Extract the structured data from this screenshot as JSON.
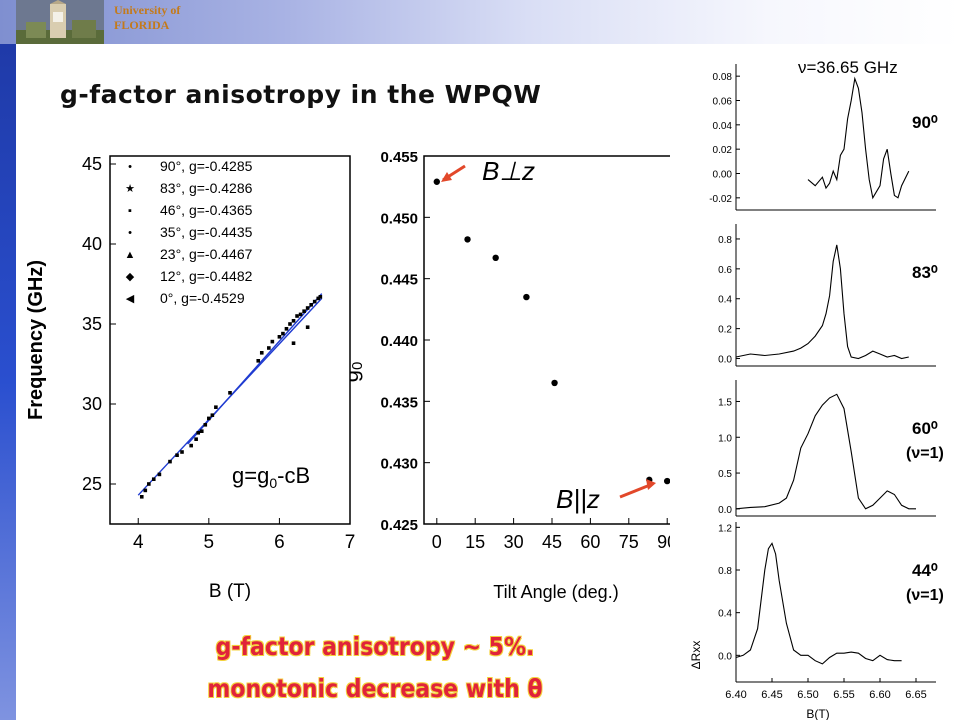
{
  "header": {
    "university_line1": "University of",
    "university_line2": "FLORIDA"
  },
  "title": "g-factor anisotropy in the WPQW",
  "caption": {
    "line1": "g-factor anisotropy ~ 5%.",
    "line2": "monotonic decrease with θ"
  },
  "colors": {
    "accent_red": "#e0233a",
    "fit_line": "#1f3bd1",
    "arrow": "#e2482a",
    "header_gold": "#c47a1a"
  },
  "chart_data": [
    {
      "type": "scatter",
      "xlabel": "B (T)",
      "ylabel": "Frequency (GHz)",
      "xlim": [
        3.6,
        7.0
      ],
      "ylim": [
        22.5,
        45.5
      ],
      "xticks": [
        "4",
        "5",
        "6",
        "7"
      ],
      "yticks": [
        "25",
        "30",
        "35",
        "40",
        "45"
      ],
      "annotation": "g=g0-cB",
      "legend": [
        {
          "marker": "•",
          "label": "90°, g=-0.4285"
        },
        {
          "marker": "★",
          "label": "83°, g=-0.4286"
        },
        {
          "marker": "▪",
          "label": "46°, g=-0.4365"
        },
        {
          "marker": "•",
          "label": "35°, g=-0.4435"
        },
        {
          "marker": "▲",
          "label": "23°, g=-0.4467"
        },
        {
          "marker": "◆",
          "label": "12°, g=-0.4482"
        },
        {
          "marker": "◀",
          "label": "0°,   g=-0.4529"
        }
      ],
      "fit_lines": [
        {
          "x": [
            4.0,
            6.6
          ],
          "y": [
            24.3,
            36.6
          ]
        },
        {
          "x": [
            4.7,
            6.6
          ],
          "y": [
            27.5,
            36.9
          ]
        }
      ],
      "points": [
        {
          "x": 4.05,
          "y": 24.2
        },
        {
          "x": 4.1,
          "y": 24.6
        },
        {
          "x": 4.15,
          "y": 25.0
        },
        {
          "x": 4.22,
          "y": 25.3
        },
        {
          "x": 4.3,
          "y": 25.6
        },
        {
          "x": 4.45,
          "y": 26.4
        },
        {
          "x": 4.55,
          "y": 26.8
        },
        {
          "x": 4.62,
          "y": 27.0
        },
        {
          "x": 4.75,
          "y": 27.4
        },
        {
          "x": 4.82,
          "y": 27.8
        },
        {
          "x": 4.85,
          "y": 28.2
        },
        {
          "x": 4.9,
          "y": 28.3
        },
        {
          "x": 4.95,
          "y": 28.7
        },
        {
          "x": 5.0,
          "y": 29.1
        },
        {
          "x": 5.05,
          "y": 29.3
        },
        {
          "x": 5.1,
          "y": 29.8
        },
        {
          "x": 5.3,
          "y": 30.7
        },
        {
          "x": 5.7,
          "y": 32.7
        },
        {
          "x": 5.75,
          "y": 33.2
        },
        {
          "x": 5.85,
          "y": 33.5
        },
        {
          "x": 5.9,
          "y": 33.9
        },
        {
          "x": 6.0,
          "y": 34.2
        },
        {
          "x": 6.05,
          "y": 34.4
        },
        {
          "x": 6.1,
          "y": 34.7
        },
        {
          "x": 6.15,
          "y": 35.0
        },
        {
          "x": 6.2,
          "y": 35.2
        },
        {
          "x": 6.25,
          "y": 35.5
        },
        {
          "x": 6.3,
          "y": 35.6
        },
        {
          "x": 6.35,
          "y": 35.8
        },
        {
          "x": 6.4,
          "y": 36.0
        },
        {
          "x": 6.45,
          "y": 36.2
        },
        {
          "x": 6.5,
          "y": 36.4
        },
        {
          "x": 6.55,
          "y": 36.6
        },
        {
          "x": 6.58,
          "y": 36.7
        },
        {
          "x": 6.2,
          "y": 33.8
        },
        {
          "x": 6.4,
          "y": 34.8
        }
      ]
    },
    {
      "type": "scatter",
      "xlabel": "Tilt Angle (deg.)",
      "ylabel": "g0",
      "xlim": [
        -5,
        95
      ],
      "ylim": [
        0.425,
        0.455
      ],
      "xticks": [
        "0",
        "15",
        "30",
        "45",
        "60",
        "75",
        "90"
      ],
      "yticks": [
        "0.425",
        "0.430",
        "0.435",
        "0.440",
        "0.445",
        "0.450",
        "0.455"
      ],
      "annotations": [
        "B⊥z",
        "B||z"
      ],
      "x": [
        0,
        12,
        23,
        35,
        46,
        83,
        90
      ],
      "y": [
        0.4529,
        0.4482,
        0.4467,
        0.4435,
        0.4365,
        0.4286,
        0.4285
      ]
    },
    {
      "type": "line",
      "title": "ν=36.65 GHz",
      "xlabel": "B(T)",
      "ylabel": "ΔRxx",
      "xlim": [
        6.4,
        6.65
      ],
      "xticks": [
        "6.40",
        "6.45",
        "6.50",
        "6.55",
        "6.60",
        "6.65"
      ],
      "panels": [
        {
          "label": "90⁰",
          "ylim": [
            -0.03,
            0.09
          ],
          "yticks": [
            "-0.02",
            "0.00",
            "0.02",
            "0.04",
            "0.06",
            "0.08"
          ],
          "x": [
            6.5,
            6.51,
            6.52,
            6.525,
            6.53,
            6.535,
            6.54,
            6.545,
            6.55,
            6.555,
            6.56,
            6.565,
            6.57,
            6.575,
            6.58,
            6.585,
            6.59,
            6.6,
            6.605,
            6.61,
            6.615,
            6.62,
            6.625,
            6.63,
            6.64
          ],
          "y": [
            -0.005,
            -0.01,
            -0.003,
            -0.012,
            -0.008,
            0.002,
            -0.005,
            0.015,
            0.02,
            0.045,
            0.06,
            0.078,
            0.07,
            0.05,
            0.02,
            -0.005,
            -0.02,
            -0.01,
            0.012,
            0.02,
            0.0,
            -0.018,
            -0.02,
            -0.01,
            0.002
          ]
        },
        {
          "label": "83⁰",
          "ylim": [
            -0.05,
            0.9
          ],
          "yticks": [
            "0.0",
            "0.2",
            "0.4",
            "0.6",
            "0.8"
          ],
          "x": [
            6.4,
            6.42,
            6.44,
            6.46,
            6.48,
            6.49,
            6.5,
            6.51,
            6.52,
            6.525,
            6.53,
            6.535,
            6.54,
            6.545,
            6.55,
            6.555,
            6.56,
            6.57,
            6.58,
            6.59,
            6.6,
            6.61,
            6.62,
            6.63,
            6.64
          ],
          "y": [
            0.01,
            0.03,
            0.02,
            0.03,
            0.05,
            0.07,
            0.1,
            0.15,
            0.22,
            0.3,
            0.42,
            0.65,
            0.76,
            0.6,
            0.3,
            0.08,
            0.01,
            0.0,
            0.02,
            0.05,
            0.03,
            0.01,
            0.02,
            0.0,
            0.01
          ]
        },
        {
          "label": "60⁰",
          "sublabel": "(ν=1)",
          "ylim": [
            -0.1,
            1.8
          ],
          "yticks": [
            "0.0",
            "0.5",
            "1.0",
            "1.5"
          ],
          "x": [
            6.4,
            6.42,
            6.44,
            6.46,
            6.47,
            6.48,
            6.49,
            6.5,
            6.51,
            6.52,
            6.53,
            6.54,
            6.55,
            6.56,
            6.57,
            6.58,
            6.59,
            6.6,
            6.61,
            6.62,
            6.63,
            6.64,
            6.65
          ],
          "y": [
            0.0,
            0.02,
            0.03,
            0.08,
            0.15,
            0.4,
            0.85,
            1.05,
            1.3,
            1.45,
            1.55,
            1.6,
            1.4,
            0.8,
            0.15,
            0.0,
            0.05,
            0.15,
            0.25,
            0.2,
            0.05,
            0.0,
            0.0
          ]
        },
        {
          "label": "44⁰",
          "sublabel": "(ν=1)",
          "ylim": [
            -0.25,
            1.25
          ],
          "yticks": [
            "0.0",
            "0.4",
            "0.8",
            "1.2"
          ],
          "x": [
            6.4,
            6.41,
            6.42,
            6.43,
            6.44,
            6.445,
            6.45,
            6.455,
            6.46,
            6.47,
            6.48,
            6.49,
            6.5,
            6.51,
            6.52,
            6.53,
            6.54,
            6.55,
            6.56,
            6.57,
            6.58,
            6.59,
            6.6,
            6.61,
            6.62,
            6.63
          ],
          "y": [
            -0.02,
            0.0,
            0.05,
            0.25,
            0.8,
            1.0,
            1.05,
            0.95,
            0.7,
            0.3,
            0.05,
            0.0,
            0.0,
            -0.05,
            -0.08,
            -0.02,
            0.02,
            0.02,
            0.03,
            0.02,
            -0.03,
            -0.05,
            0.0,
            -0.04,
            -0.05,
            -0.05
          ]
        }
      ]
    }
  ]
}
